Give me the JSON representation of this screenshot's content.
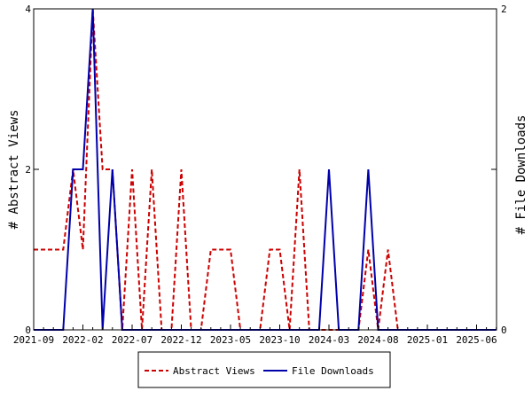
{
  "chart_data": {
    "type": "line",
    "x_tick_labels": [
      "2021-09",
      "2022-02",
      "2022-07",
      "2022-12",
      "2023-05",
      "2023-10",
      "2024-03",
      "2024-08",
      "2025-01",
      "2025-06"
    ],
    "x_start": "2021-09",
    "x_end": "2025-08",
    "y_left": {
      "label": "# Abstract Views",
      "ylim": [
        0,
        4
      ],
      "ticks": [
        "0",
        "2",
        "4"
      ]
    },
    "y_right": {
      "label": "# File Downloads",
      "ylim": [
        0,
        2
      ],
      "ticks": [
        "0",
        "1",
        "2"
      ]
    },
    "legend_position": "bottom-center",
    "grid": false,
    "series": [
      {
        "name": "Abstract Views",
        "axis": "left",
        "color": "#cc0000",
        "style": "dashed",
        "x": [
          "2021-09",
          "2021-10",
          "2021-11",
          "2021-12",
          "2022-01",
          "2022-02",
          "2022-03",
          "2022-04",
          "2022-05",
          "2022-06",
          "2022-07",
          "2022-08",
          "2022-09",
          "2022-10",
          "2022-11",
          "2022-12",
          "2023-01",
          "2023-02",
          "2023-03",
          "2023-04",
          "2023-05",
          "2023-06",
          "2023-07",
          "2023-08",
          "2023-09",
          "2023-10",
          "2023-11",
          "2023-12",
          "2024-01",
          "2024-02",
          "2024-03",
          "2024-04",
          "2024-05",
          "2024-06",
          "2024-07",
          "2024-08",
          "2024-09",
          "2024-10",
          "2024-11",
          "2024-12",
          "2025-01",
          "2025-02",
          "2025-03",
          "2025-04",
          "2025-05",
          "2025-06",
          "2025-07",
          "2025-08"
        ],
        "values": [
          1,
          1,
          1,
          1,
          2,
          1,
          4,
          2,
          2,
          0,
          2,
          0,
          2,
          0,
          0,
          2,
          0,
          0,
          1,
          1,
          1,
          0,
          0,
          0,
          1,
          1,
          0,
          2,
          0,
          0,
          0,
          0,
          0,
          0,
          1,
          0,
          1,
          0,
          0,
          0,
          0,
          0,
          0,
          0,
          0,
          0,
          0,
          0
        ]
      },
      {
        "name": "File Downloads",
        "axis": "right",
        "color": "#0000aa",
        "style": "solid",
        "x": [
          "2021-09",
          "2021-10",
          "2021-11",
          "2021-12",
          "2022-01",
          "2022-02",
          "2022-03",
          "2022-04",
          "2022-05",
          "2022-06",
          "2022-07",
          "2022-08",
          "2022-09",
          "2022-10",
          "2022-11",
          "2022-12",
          "2023-01",
          "2023-02",
          "2023-03",
          "2023-04",
          "2023-05",
          "2023-06",
          "2023-07",
          "2023-08",
          "2023-09",
          "2023-10",
          "2023-11",
          "2023-12",
          "2024-01",
          "2024-02",
          "2024-03",
          "2024-04",
          "2024-05",
          "2024-06",
          "2024-07",
          "2024-08",
          "2024-09",
          "2024-10",
          "2024-11",
          "2024-12",
          "2025-01",
          "2025-02",
          "2025-03",
          "2025-04",
          "2025-05",
          "2025-06",
          "2025-07",
          "2025-08"
        ],
        "values": [
          0,
          0,
          0,
          0,
          1,
          1,
          2,
          0,
          1,
          0,
          0,
          0,
          0,
          0,
          0,
          0,
          0,
          0,
          0,
          0,
          0,
          0,
          0,
          0,
          0,
          0,
          0,
          0,
          0,
          0,
          1,
          0,
          0,
          0,
          1,
          0,
          0,
          0,
          0,
          0,
          0,
          0,
          0,
          0,
          0,
          0,
          0,
          0
        ]
      }
    ]
  }
}
